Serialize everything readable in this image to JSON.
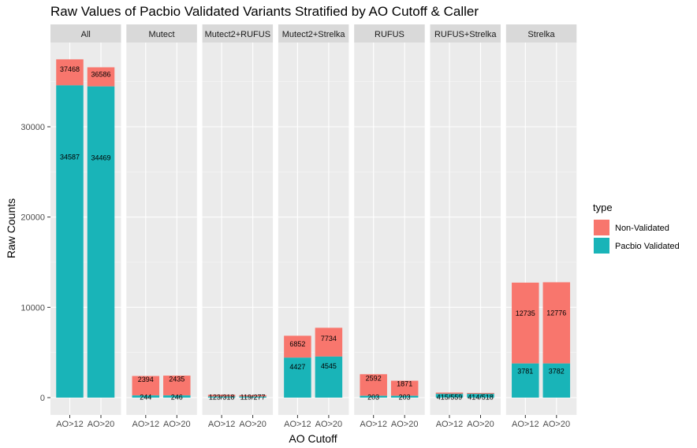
{
  "chart_data": {
    "type": "bar",
    "stacked": true,
    "faceted": true,
    "title": "Raw Values of Pacbio Validated Variants Stratified by AO Cutoff & Caller",
    "xlabel": "AO Cutoff",
    "ylabel": "Raw Counts",
    "ylim": [
      0,
      39000
    ],
    "yticks": [
      0,
      10000,
      20000,
      30000
    ],
    "ytick_labels": [
      "0",
      "10000",
      "20000",
      "30000"
    ],
    "grid": true,
    "legend_position": "right",
    "legend": {
      "title": "type",
      "items": [
        {
          "label": "Non-Validated",
          "color": "#F8766D"
        },
        {
          "label": "Pacbio Validated",
          "color": "#19B4B8"
        }
      ]
    },
    "categories": [
      "AO>12",
      "AO>20"
    ],
    "panels": [
      {
        "name": "All",
        "bars": [
          {
            "category": "AO>12",
            "validated": 34587,
            "total": 37468,
            "validated_label": "34587",
            "total_label": "37468"
          },
          {
            "category": "AO>20",
            "validated": 34469,
            "total": 36586,
            "validated_label": "34469",
            "total_label": "36586"
          }
        ]
      },
      {
        "name": "Mutect",
        "bars": [
          {
            "category": "AO>12",
            "validated": 244,
            "total": 2394,
            "validated_label": "244",
            "total_label": "2394"
          },
          {
            "category": "AO>20",
            "validated": 246,
            "total": 2435,
            "validated_label": "246",
            "total_label": "2435"
          }
        ]
      },
      {
        "name": "Mutect2+RUFUS",
        "bars": [
          {
            "category": "AO>12",
            "validated": 123,
            "total": 318,
            "validated_label": "123",
            "total_label": "318"
          },
          {
            "category": "AO>20",
            "validated": 119,
            "total": 277,
            "validated_label": "119",
            "total_label": "277"
          }
        ]
      },
      {
        "name": "Mutect2+Strelka",
        "bars": [
          {
            "category": "AO>12",
            "validated": 4427,
            "total": 6852,
            "validated_label": "4427",
            "total_label": "6852"
          },
          {
            "category": "AO>20",
            "validated": 4545,
            "total": 7734,
            "validated_label": "4545",
            "total_label": "7734"
          }
        ]
      },
      {
        "name": "RUFUS",
        "bars": [
          {
            "category": "AO>12",
            "validated": 203,
            "total": 2592,
            "validated_label": "203",
            "total_label": "2592"
          },
          {
            "category": "AO>20",
            "validated": 203,
            "total": 1871,
            "validated_label": "203",
            "total_label": "1871"
          }
        ]
      },
      {
        "name": "RUFUS+Strelka",
        "bars": [
          {
            "category": "AO>12",
            "validated": 415,
            "total": 559,
            "validated_label": "415",
            "total_label": "559"
          },
          {
            "category": "AO>20",
            "validated": 414,
            "total": 518,
            "validated_label": "414",
            "total_label": "518"
          }
        ]
      },
      {
        "name": "Strelka",
        "bars": [
          {
            "category": "AO>12",
            "validated": 3781,
            "total": 12735,
            "validated_label": "3781",
            "total_label": "12735"
          },
          {
            "category": "AO>20",
            "validated": 3782,
            "total": 12776,
            "validated_label": "3782",
            "total_label": "12776"
          }
        ]
      }
    ]
  }
}
